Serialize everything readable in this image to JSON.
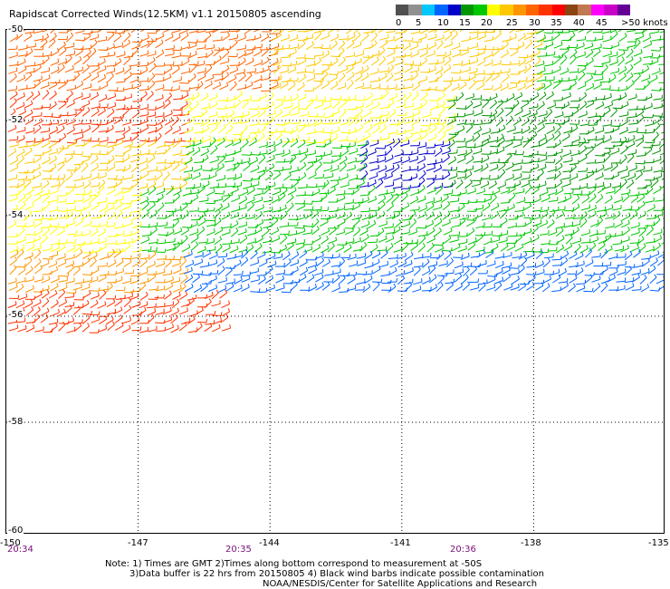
{
  "title": "Rapidscat Corrected Winds(12.5KM) v1.1 20150805 ascending",
  "legend": {
    "colors": [
      "#505050",
      "#909090",
      "#00c8ff",
      "#0064ff",
      "#0000c8",
      "#009600",
      "#00c800",
      "#ffff00",
      "#ffc800",
      "#ff9600",
      "#ff6400",
      "#ff3200",
      "#ff0000",
      "#8b4513",
      "#c07850",
      "#ff00ff",
      "#c800c8",
      "#640096"
    ],
    "labels": [
      "0",
      "5",
      "10",
      "15",
      "20",
      "25",
      "30",
      "35",
      "40",
      "45",
      ">50 knots"
    ]
  },
  "axes": {
    "lat_labels": [
      "-50",
      "-52",
      "-54",
      "-56",
      "-58",
      "-60"
    ],
    "lon_labels": [
      "-150",
      "-147",
      "-144",
      "-141",
      "-138",
      "-135"
    ],
    "time_labels": [
      "20:34",
      "20:35",
      "20:36"
    ]
  },
  "notes": {
    "line1": "Note: 1) Times are GMT 2)Times along bottom correspond to measurement at -50S",
    "line2": "3)Data buffer is 22 hrs from 20150805 4) Black wind barbs indicate possible contamination",
    "line3": "NOAA/NESDIS/Center for Satellite Applications and Research"
  },
  "wind_field": {
    "region": "Wind barbs cover roughly -50 to -56.5 latitude across the map; strongest (red/magenta) in the northwest and southwest, moderate (green/yellow) in the center, and light (blue) along the southern edge of the swath.",
    "zones": [
      {
        "lat": [
          -50.0,
          -51.5
        ],
        "lon": [
          -150.0,
          -144.0
        ],
        "color": "#ff6400",
        "speed_kt": 30
      },
      {
        "lat": [
          -50.0,
          -51.5
        ],
        "lon": [
          -144.0,
          -138.0
        ],
        "color": "#ffc800",
        "speed_kt": 22
      },
      {
        "lat": [
          -50.0,
          -51.5
        ],
        "lon": [
          -138.0,
          -135.0
        ],
        "color": "#00c800",
        "speed_kt": 18
      },
      {
        "lat": [
          -51.5,
          -52.5
        ],
        "lon": [
          -150.0,
          -146.0
        ],
        "color": "#ff3200",
        "speed_kt": 34
      },
      {
        "lat": [
          -51.5,
          -52.5
        ],
        "lon": [
          -146.0,
          -140.0
        ],
        "color": "#ffff00",
        "speed_kt": 21
      },
      {
        "lat": [
          -51.5,
          -52.5
        ],
        "lon": [
          -140.0,
          -135.0
        ],
        "color": "#009600",
        "speed_kt": 17
      },
      {
        "lat": [
          -52.5,
          -53.5
        ],
        "lon": [
          -150.0,
          -146.0
        ],
        "color": "#ffc800",
        "speed_kt": 22
      },
      {
        "lat": [
          -52.5,
          -53.5
        ],
        "lon": [
          -146.0,
          -142.0
        ],
        "color": "#00c800",
        "speed_kt": 18
      },
      {
        "lat": [
          -52.5,
          -53.5
        ],
        "lon": [
          -142.0,
          -140.0
        ],
        "color": "#0000c8",
        "speed_kt": 13
      },
      {
        "lat": [
          -52.5,
          -53.5
        ],
        "lon": [
          -140.0,
          -135.0
        ],
        "color": "#009600",
        "speed_kt": 17
      },
      {
        "lat": [
          -53.5,
          -54.8
        ],
        "lon": [
          -150.0,
          -147.0
        ],
        "color": "#ffff00",
        "speed_kt": 21
      },
      {
        "lat": [
          -53.5,
          -54.8
        ],
        "lon": [
          -147.0,
          -135.0
        ],
        "color": "#00c800",
        "speed_kt": 16
      },
      {
        "lat": [
          -54.8,
          -55.6
        ],
        "lon": [
          -150.0,
          -146.0
        ],
        "color": "#ff9600",
        "speed_kt": 26
      },
      {
        "lat": [
          -54.8,
          -55.6
        ],
        "lon": [
          -146.0,
          -135.0
        ],
        "color": "#0064ff",
        "speed_kt": 11
      },
      {
        "lat": [
          -55.6,
          -56.4
        ],
        "lon": [
          -150.0,
          -145.0
        ],
        "color": "#ff3200",
        "speed_kt": 33
      }
    ]
  }
}
